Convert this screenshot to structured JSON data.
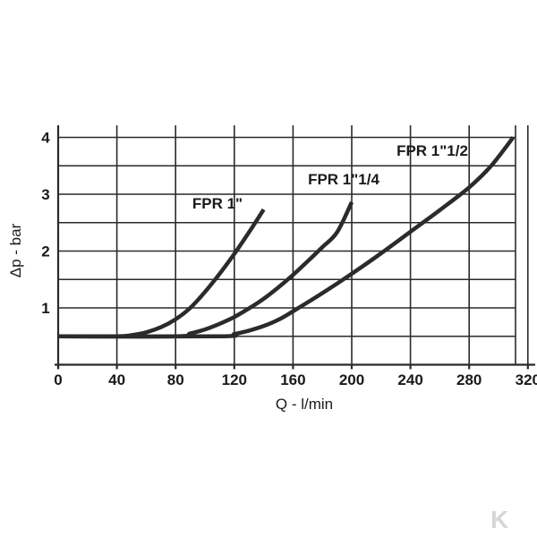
{
  "chart_data": {
    "type": "line",
    "xlabel": "Q - l/min",
    "ylabel": "Δp - bar",
    "xlim": [
      0,
      330
    ],
    "ylim": [
      0,
      4.2
    ],
    "x_ticks": [
      "0",
      "40",
      "80",
      "120",
      "160",
      "200",
      "240",
      "280",
      "320"
    ],
    "y_ticks": [
      "1",
      "2",
      "3",
      "4"
    ],
    "grid": true,
    "series": [
      {
        "name": "FPR 1\"",
        "x": [
          0,
          40,
          50,
          60,
          70,
          80,
          90,
          100,
          110,
          120,
          130,
          140
        ],
        "y": [
          0.5,
          0.5,
          0.52,
          0.57,
          0.66,
          0.8,
          1.0,
          1.28,
          1.6,
          1.95,
          2.33,
          2.73
        ]
      },
      {
        "name": "FPR 1\"1/4",
        "x": [
          0,
          80,
          90,
          100,
          110,
          120,
          130,
          140,
          150,
          160,
          170,
          180,
          190,
          200
        ],
        "y": [
          0.5,
          0.5,
          0.55,
          0.62,
          0.72,
          0.84,
          0.99,
          1.16,
          1.36,
          1.58,
          1.82,
          2.07,
          2.33,
          2.86
        ]
      },
      {
        "name": "FPR 1\"1/2",
        "x": [
          0,
          110,
          120,
          130,
          140,
          150,
          160,
          180,
          200,
          220,
          240,
          260,
          280,
          295,
          310
        ],
        "y": [
          0.5,
          0.5,
          0.54,
          0.6,
          0.68,
          0.79,
          0.94,
          1.26,
          1.6,
          1.96,
          2.34,
          2.72,
          3.12,
          3.5,
          4.0
        ]
      }
    ]
  },
  "watermark": {
    "text": "K"
  }
}
